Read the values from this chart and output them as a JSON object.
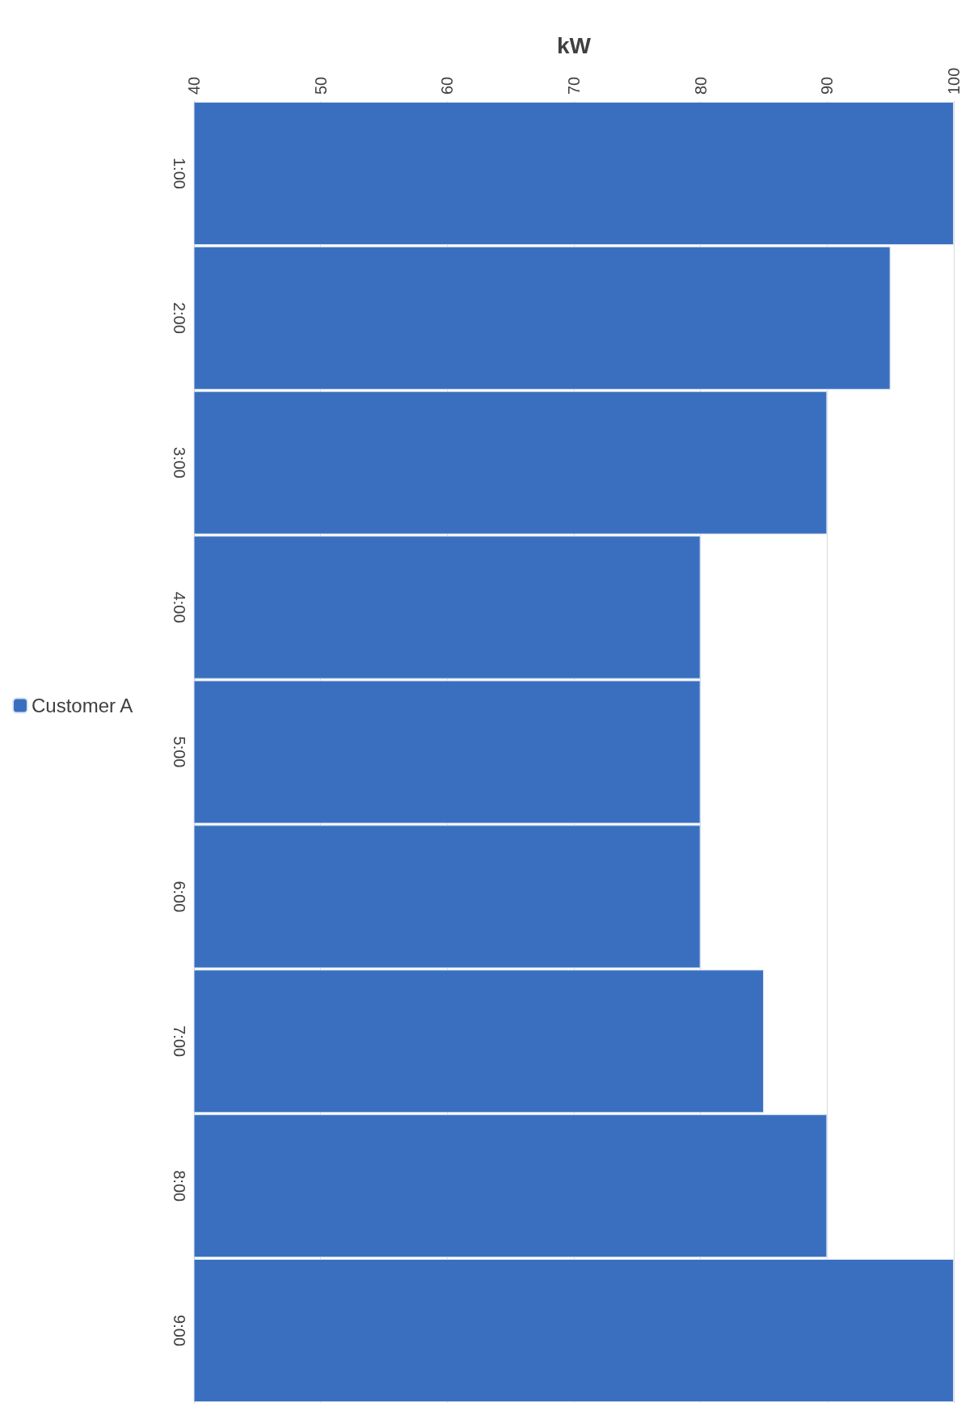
{
  "chart_data": {
    "type": "bar",
    "orientation": "horizontal",
    "xlabel": "kW",
    "categories": [
      "1:00",
      "2:00",
      "3:00",
      "4:00",
      "5:00",
      "6:00",
      "7:00",
      "8:00",
      "9:00"
    ],
    "series": [
      {
        "name": "Customer A",
        "color": "#3a6fc0",
        "values": [
          100,
          95,
          90,
          80,
          80,
          80,
          85,
          90,
          100
        ]
      }
    ],
    "xlim": [
      40,
      100
    ],
    "xticks": [
      40,
      50,
      60,
      70,
      80,
      90,
      100
    ],
    "grid": "x",
    "legend": "left"
  }
}
